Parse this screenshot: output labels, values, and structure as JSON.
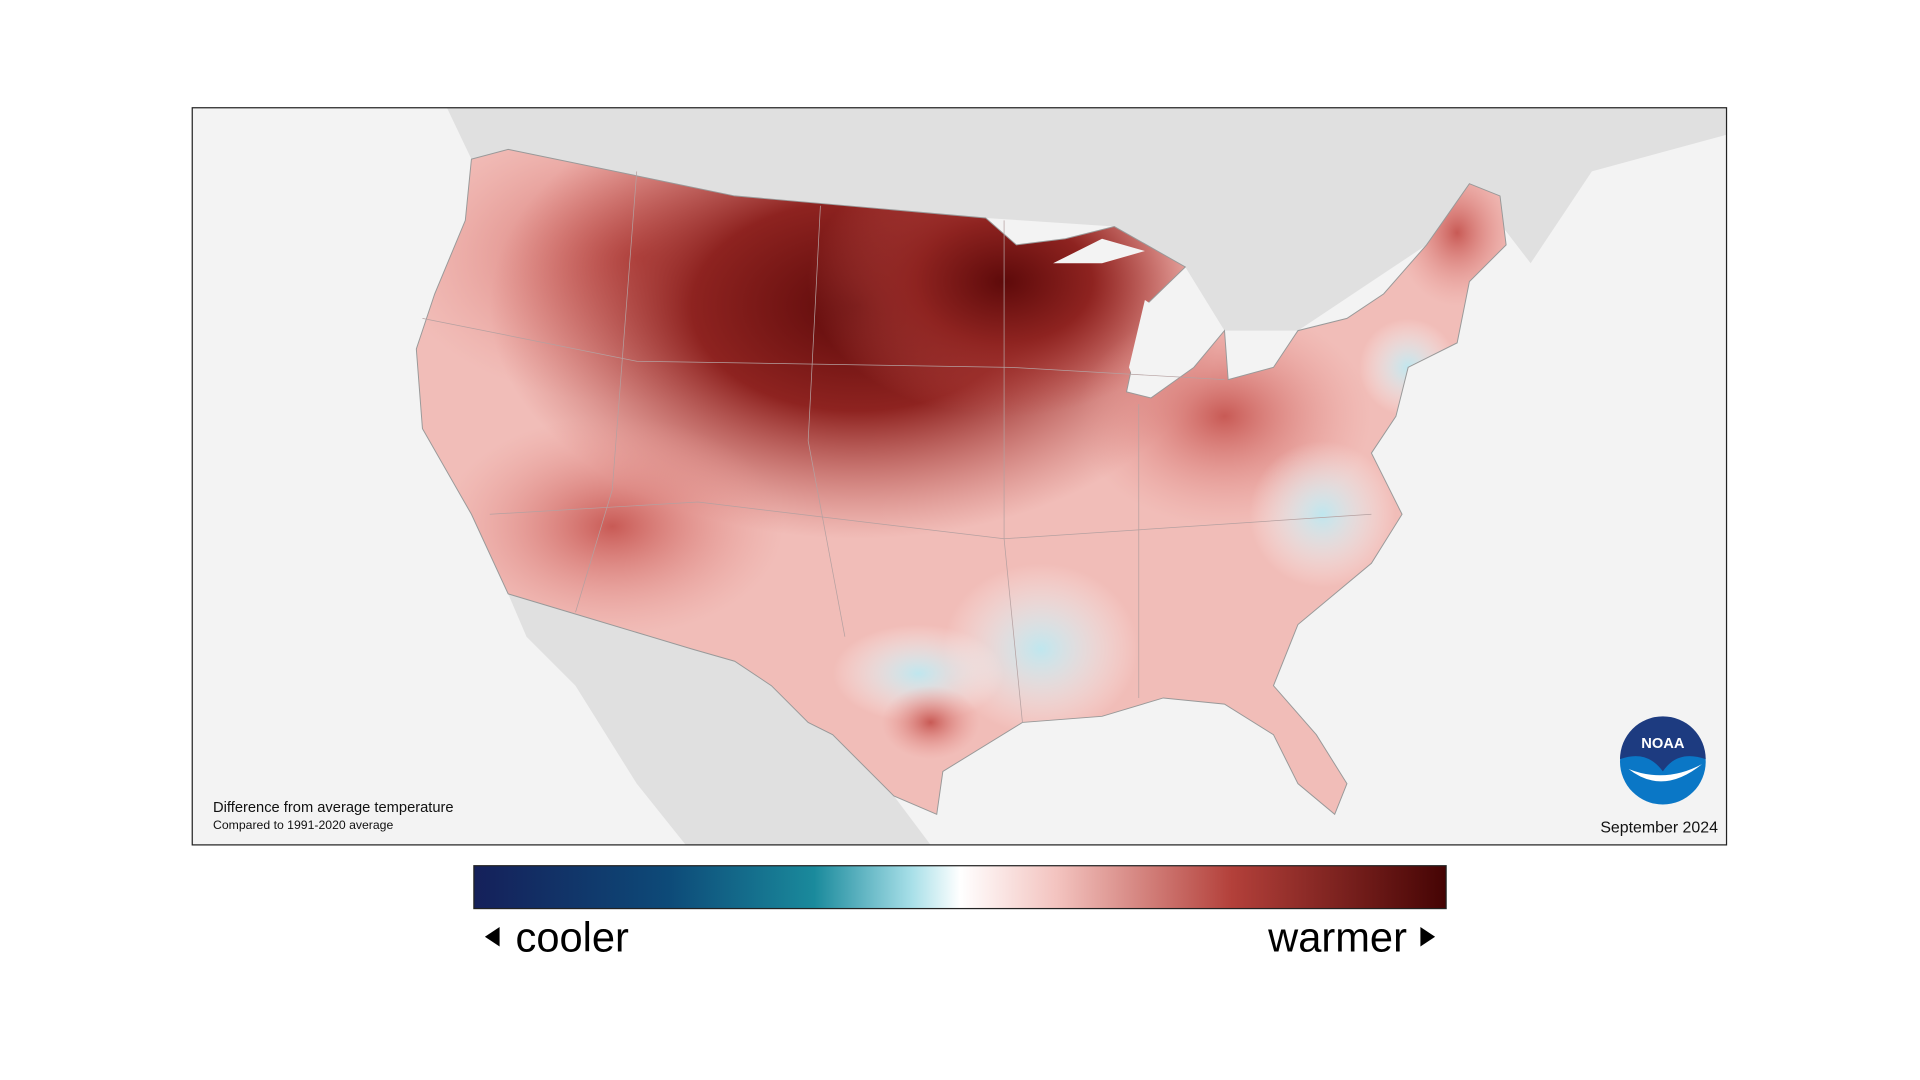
{
  "map": {
    "note_title": "Difference from average temperature",
    "note_subtitle": "Compared to 1991-2020 average",
    "date": "September 2024",
    "logo_text": "NOAA"
  },
  "legend": {
    "low_label": "cooler",
    "high_label": "warmer"
  }
}
